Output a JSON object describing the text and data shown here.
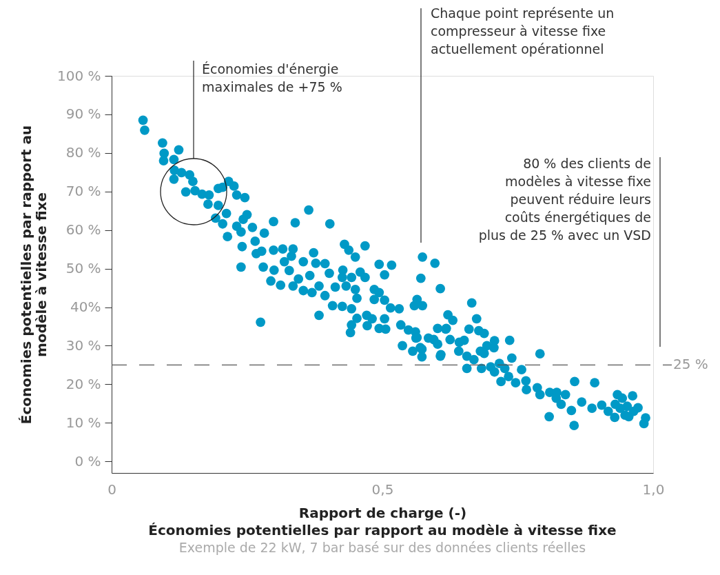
{
  "chart_data": {
    "type": "scatter",
    "title": "Économies potentielles par rapport au modèle à vitesse fixe",
    "subtitle": "Exemple de 22 kW, 7 bar basé sur des données clients réelles",
    "xlabel": "Rapport de charge (-)",
    "ylabel": "Économies potentielles par rapport au modèle à vitesse fixe",
    "annotations": [
      "Économies d'énergie maximales de +75 %",
      "Chaque point représente un compresseur à vitesse fixe actuellement opérationnel",
      "80 % des clients de modèles à vitesse fixe peuvent réduire leurs coûts énergétiques de plus de 25 % avec un VSD"
    ],
    "xlim": [
      0,
      1.0
    ],
    "xticks": [
      0,
      {
        "value": 0.5,
        "label": "0,5"
      },
      {
        "value": 1.0,
        "label": "1,0"
      }
    ],
    "ylim": [
      -3,
      100
    ],
    "yticks": [
      {
        "value": 0,
        "label": "0 %"
      },
      {
        "value": 10,
        "label": "10 %"
      },
      {
        "value": 20,
        "label": "20 %"
      },
      {
        "value": 30,
        "label": "30 %"
      },
      {
        "value": 40,
        "label": "40%"
      },
      {
        "value": 50,
        "label": "50 %"
      },
      {
        "value": 60,
        "label": "60 %"
      },
      {
        "value": 70,
        "label": "70 %"
      },
      {
        "value": 80,
        "label": "80 %"
      },
      {
        "value": 90,
        "label": "90 %"
      },
      {
        "value": 100,
        "label": "100 %"
      }
    ],
    "ref_lines": [
      {
        "axis": "y",
        "value": 25,
        "label": "25 %",
        "line_style": "dashed",
        "color": "#555555"
      }
    ],
    "grid": false,
    "marker": "circle",
    "series": [
      {
        "color": "#0099c6",
        "x": [
          0.058,
          0.061,
          0.094,
          0.097,
          0.124,
          0.096,
          0.115,
          0.116,
          0.129,
          0.144,
          0.15,
          0.115,
          0.137,
          0.154,
          0.167,
          0.18,
          0.178,
          0.197,
          0.205,
          0.216,
          0.226,
          0.231,
          0.246,
          0.197,
          0.212,
          0.192,
          0.205,
          0.25,
          0.243,
          0.231,
          0.299,
          0.339,
          0.214,
          0.239,
          0.26,
          0.282,
          0.241,
          0.265,
          0.299,
          0.316,
          0.335,
          0.267,
          0.277,
          0.364,
          0.403,
          0.28,
          0.239,
          0.3,
          0.319,
          0.332,
          0.354,
          0.373,
          0.377,
          0.394,
          0.402,
          0.294,
          0.312,
          0.335,
          0.354,
          0.37,
          0.383,
          0.328,
          0.345,
          0.366,
          0.413,
          0.394,
          0.275,
          0.383,
          0.408,
          0.43,
          0.438,
          0.45,
          0.468,
          0.427,
          0.426,
          0.443,
          0.433,
          0.459,
          0.468,
          0.494,
          0.517,
          0.504,
          0.45,
          0.453,
          0.426,
          0.443,
          0.453,
          0.443,
          0.441,
          0.471,
          0.481,
          0.472,
          0.485,
          0.494,
          0.485,
          0.504,
          0.515,
          0.531,
          0.504,
          0.494,
          0.506,
          0.534,
          0.548,
          0.561,
          0.564,
          0.537,
          0.574,
          0.597,
          0.571,
          0.607,
          0.564,
          0.559,
          0.574,
          0.585,
          0.602,
          0.602,
          0.618,
          0.556,
          0.573,
          0.608,
          0.665,
          0.674,
          0.678,
          0.688,
          0.66,
          0.621,
          0.63,
          0.617,
          0.625,
          0.595,
          0.607,
          0.573,
          0.57,
          0.562,
          0.642,
          0.651,
          0.641,
          0.656,
          0.669,
          0.681,
          0.688,
          0.693,
          0.706,
          0.707,
          0.735,
          0.739,
          0.791,
          0.656,
          0.683,
          0.7,
          0.707,
          0.716,
          0.726,
          0.719,
          0.733,
          0.746,
          0.757,
          0.765,
          0.766,
          0.786,
          0.791,
          0.809,
          0.822,
          0.821,
          0.838,
          0.83,
          0.808,
          0.849,
          0.854,
          0.855,
          0.868,
          0.887,
          0.892,
          0.905,
          0.917,
          0.929,
          0.934,
          0.93,
          0.943,
          0.939,
          0.952,
          0.948,
          0.955,
          0.962,
          0.964,
          0.972,
          0.986,
          0.983
        ],
        "values": [
          88.5,
          85.9,
          82.6,
          79.9,
          80.8,
          78.0,
          78.3,
          75.5,
          74.9,
          74.3,
          72.6,
          73.2,
          69.9,
          70.2,
          69.3,
          69.1,
          66.7,
          70.8,
          71.1,
          72.6,
          71.4,
          69.1,
          68.4,
          66.4,
          64.3,
          63.1,
          61.6,
          64.0,
          62.8,
          61.0,
          62.2,
          61.9,
          58.3,
          59.5,
          60.7,
          59.2,
          55.7,
          57.1,
          54.8,
          55.1,
          55.1,
          53.9,
          54.5,
          65.2,
          61.6,
          50.4,
          50.4,
          49.6,
          51.8,
          53.2,
          51.8,
          54.1,
          51.4,
          51.3,
          48.8,
          46.8,
          45.7,
          45.5,
          44.3,
          43.8,
          45.5,
          49.5,
          47.3,
          48.2,
          45.2,
          43.0,
          36.1,
          37.9,
          40.4,
          56.3,
          54.8,
          53.0,
          55.9,
          49.6,
          47.7,
          47.7,
          45.5,
          49.1,
          47.7,
          51.1,
          50.9,
          48.4,
          44.6,
          42.3,
          40.2,
          39.6,
          37.1,
          35.4,
          33.4,
          37.9,
          37.0,
          35.2,
          44.6,
          43.8,
          42.0,
          41.8,
          39.8,
          39.6,
          37.0,
          34.5,
          34.3,
          35.4,
          34.1,
          33.6,
          32.1,
          30.0,
          53.0,
          51.4,
          47.5,
          44.8,
          42.0,
          40.4,
          40.4,
          32.0,
          30.4,
          34.5,
          34.5,
          28.6,
          29.1,
          27.7,
          41.1,
          37.0,
          33.9,
          33.2,
          34.3,
          38.0,
          36.6,
          34.3,
          31.6,
          31.6,
          27.3,
          27.1,
          29.5,
          32.0,
          30.9,
          31.4,
          28.6,
          27.3,
          26.4,
          28.6,
          28.0,
          30.0,
          29.5,
          31.3,
          31.4,
          26.8,
          27.9,
          24.1,
          24.1,
          24.5,
          23.2,
          25.4,
          24.1,
          20.7,
          22.0,
          20.4,
          23.8,
          20.9,
          18.6,
          19.1,
          17.3,
          17.9,
          17.9,
          16.4,
          17.3,
          14.8,
          11.6,
          13.2,
          9.3,
          20.7,
          15.4,
          13.8,
          20.4,
          14.6,
          13.0,
          11.4,
          17.3,
          14.8,
          16.4,
          13.8,
          14.3,
          12.0,
          11.6,
          17.0,
          13.0,
          13.9,
          11.3,
          9.8
        ]
      }
    ]
  }
}
